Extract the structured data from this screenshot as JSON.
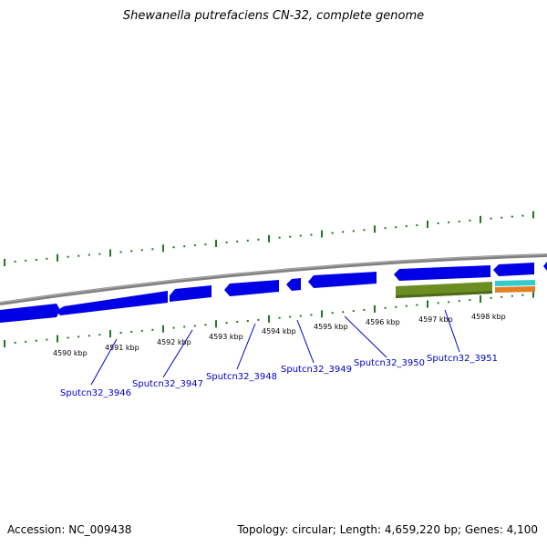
{
  "title": "Shewanella putrefaciens CN-32, complete genome",
  "footer": {
    "accession": "Accession: NC_009438",
    "summary": "Topology: circular; Length: 4,659,220 bp; Genes: 4,100"
  },
  "scale_labels": [
    "4590 kbp",
    "4591 kbp",
    "4592 kbp",
    "4593 kbp",
    "4594 kbp",
    "4595 kbp",
    "4596 kbp",
    "4597 kbp",
    "4598 kbp"
  ],
  "gene_labels": [
    "Sputcn32_3946",
    "Sputcn32_3947",
    "Sputcn32_3948",
    "Sputcn32_3949",
    "Sputcn32_3950",
    "Sputcn32_3951"
  ],
  "colors": {
    "backbone": "#808080",
    "cds": "#0000e6",
    "ticks": "#1e7a1e",
    "label_link": "#0000cc",
    "feature_green": "#6b8e23",
    "feature_cyan": "#33cccc",
    "feature_orange": "#e67e22"
  }
}
